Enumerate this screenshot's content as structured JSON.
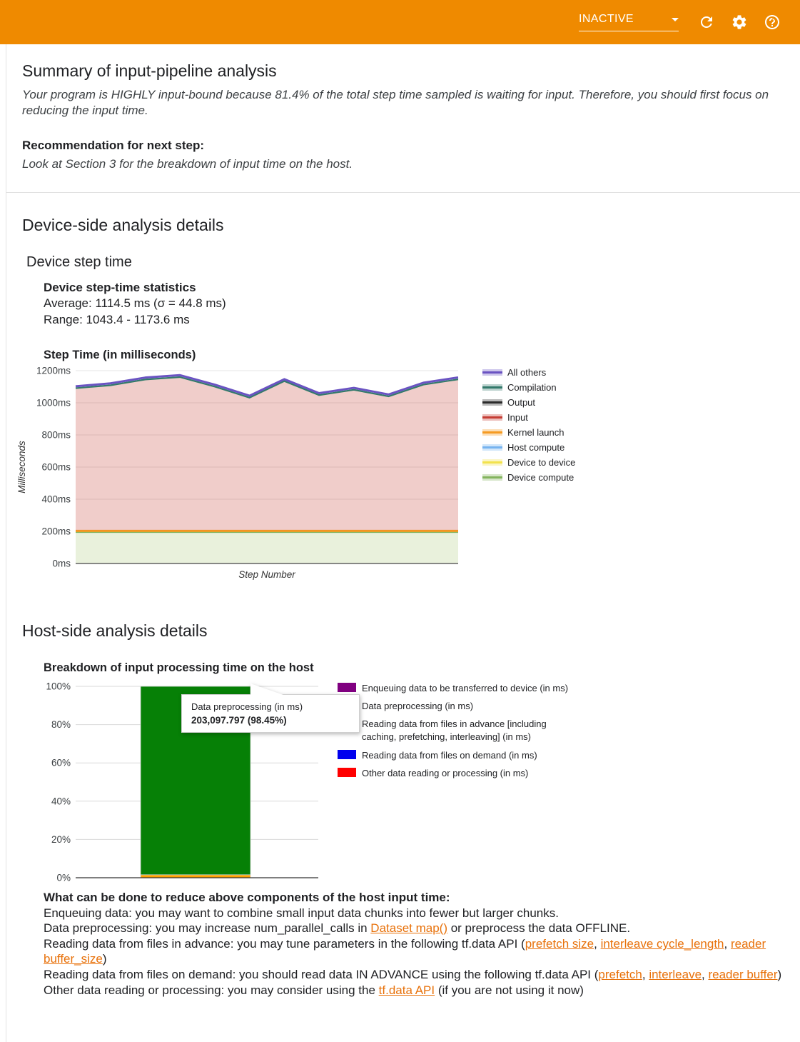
{
  "colors": {
    "toolbar": "#ef8a00",
    "link": "#e8710a"
  },
  "header": {
    "status_label": "INACTIVE"
  },
  "summary": {
    "title": "Summary of input-pipeline analysis",
    "body": "Your program is HIGHLY input-bound because 81.4% of the total step time sampled is waiting for input. Therefore, you should first focus on reducing the input time.",
    "recommendation_label": "Recommendation for next step:",
    "recommendation_body": "Look at Section 3 for the breakdown of input time on the host."
  },
  "device_section": {
    "title": "Device-side analysis details",
    "subtitle": "Device step time",
    "stats_title": "Device step-time statistics",
    "stats_average": "Average: 1114.5 ms (σ = 44.8 ms)",
    "stats_range": "Range: 1043.4 - 1173.6 ms"
  },
  "host_section": {
    "title": "Host-side analysis details",
    "advice_title": "What can be done to reduce above components of the host input time:",
    "advice_lines": [
      [
        {
          "t": "Enqueuing data: you may want to combine small input data chunks into fewer but larger chunks."
        }
      ],
      [
        {
          "t": "Data preprocessing: you may increase num_parallel_calls in "
        },
        {
          "t": "Dataset map()",
          "link": true
        },
        {
          "t": " or preprocess the data OFFLINE."
        }
      ],
      [
        {
          "t": "Reading data from files in advance: you may tune parameters in the following tf.data API ("
        },
        {
          "t": "prefetch size",
          "link": true
        },
        {
          "t": ", "
        },
        {
          "t": "interleave cycle_length",
          "link": true
        },
        {
          "t": ", "
        },
        {
          "t": "reader buffer_size",
          "link": true
        },
        {
          "t": ")"
        }
      ],
      [
        {
          "t": "Reading data from files on demand: you should read data IN ADVANCE using the following tf.data API ("
        },
        {
          "t": "prefetch",
          "link": true
        },
        {
          "t": ", "
        },
        {
          "t": "interleave",
          "link": true
        },
        {
          "t": ", "
        },
        {
          "t": "reader buffer",
          "link": true
        },
        {
          "t": ")"
        }
      ],
      [
        {
          "t": "Other data reading or processing: you may consider using the "
        },
        {
          "t": "tf.data API",
          "link": true
        },
        {
          "t": " (if you are not using it now)"
        }
      ]
    ]
  },
  "chart_data": [
    {
      "type": "area",
      "title": "Step Time (in milliseconds)",
      "xlabel": "Step Number",
      "ylabel": "Milliseconds",
      "ylim": [
        0,
        1200
      ],
      "ytick_step": 200,
      "ytick_labels": [
        "0ms",
        "200ms",
        "400ms",
        "600ms",
        "800ms",
        "1000ms",
        "1200ms"
      ],
      "grid": true,
      "legend_position": "right",
      "step_totals_ms": [
        1103,
        1121,
        1157,
        1172,
        1113,
        1044,
        1147,
        1060,
        1093,
        1052,
        1125,
        1158
      ],
      "device_compute_ms": 195,
      "kernel_launch_top_ms": 203,
      "compilation_gap_ms": 12,
      "input_fill": "rgba(197,61,52,0.26)",
      "device_compute_fill": "#e9f1dc",
      "legend": [
        {
          "label": "All others",
          "color": "#6a53c2"
        },
        {
          "label": "Compilation",
          "color": "#33796b"
        },
        {
          "label": "Output",
          "color": "#2b2b2b"
        },
        {
          "label": "Input",
          "color": "#c53d34"
        },
        {
          "label": "Kernel launch",
          "color": "#f59b23"
        },
        {
          "label": "Host compute",
          "color": "#76b3ef"
        },
        {
          "label": "Device to device",
          "color": "#f2e24d"
        },
        {
          "label": "Device compute",
          "color": "#84b45e"
        }
      ]
    },
    {
      "type": "bar",
      "title": "Breakdown of input processing time on the host",
      "ytick_labels": [
        "0%",
        "20%",
        "40%",
        "60%",
        "80%",
        "100%"
      ],
      "ylim": [
        0,
        100
      ],
      "grid": true,
      "legend_position": "right",
      "bar_segments": [
        {
          "name": "Reading data from files in advance [including caching, prefetching, interleaving] (in ms)",
          "color": "#ffa200",
          "pct": 1.55
        },
        {
          "name": "Data preprocessing (in ms)",
          "color": "#068006",
          "pct": 98.45
        }
      ],
      "tooltip": {
        "title": "Data preprocessing (in ms)",
        "value": "203,097.797 (98.45%)"
      },
      "legend": [
        {
          "label": "Enqueuing data to be transferred to device (in ms)",
          "color": "#800080"
        },
        {
          "label": "Data preprocessing (in ms)",
          "color": "#068006"
        },
        {
          "label": "Reading data from files in advance [including caching, prefetching, interleaving] (in ms)",
          "color": "#ffa200"
        },
        {
          "label": "Reading data from files on demand (in ms)",
          "color": "#0000ee"
        },
        {
          "label": "Other data reading or processing (in ms)",
          "color": "#ff0000"
        }
      ]
    }
  ]
}
